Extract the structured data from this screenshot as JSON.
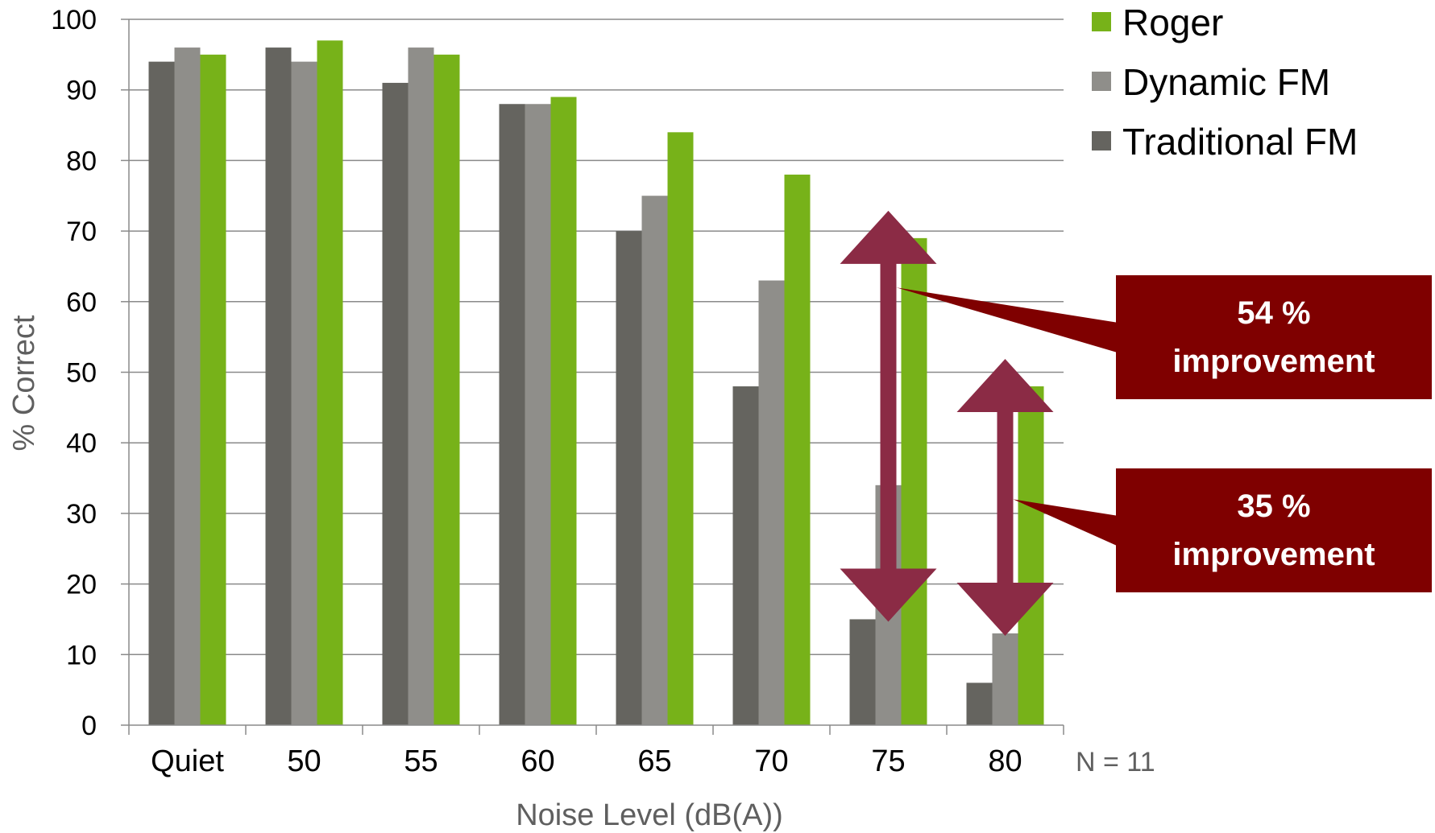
{
  "chart_data": {
    "type": "bar",
    "categories": [
      "Quiet",
      "50",
      "55",
      "60",
      "65",
      "70",
      "75",
      "80"
    ],
    "series": [
      {
        "name": "Traditional FM",
        "color": "#65645f",
        "values": [
          94,
          96,
          91,
          88,
          70,
          48,
          15,
          6
        ]
      },
      {
        "name": "Dynamic FM",
        "color": "#8f8e8a",
        "values": [
          96,
          94,
          96,
          88,
          75,
          63,
          34,
          13
        ]
      },
      {
        "name": "Roger",
        "color": "#77b219",
        "values": [
          95,
          97,
          95,
          89,
          84,
          78,
          69,
          48
        ]
      }
    ],
    "legend_order": [
      "Roger",
      "Dynamic FM",
      "Traditional FM"
    ],
    "legend_position": "top-right",
    "xlabel": "Noise Level (dB(A))",
    "ylabel": "% Correct",
    "ylim": [
      0,
      100
    ],
    "yticks": [
      0,
      10,
      20,
      30,
      40,
      50,
      60,
      70,
      80,
      90,
      100
    ],
    "grid": true,
    "grid_color": "#8a8a8a",
    "axis_label_color": "#5f5f5f",
    "sample_note": "N = 11",
    "arrow_color": "#8b2b45",
    "annotations": [
      {
        "category": "75",
        "from": 15,
        "to": 69,
        "line1": "54 %",
        "line2": "improvement",
        "box_color": "#7f0000"
      },
      {
        "category": "80",
        "from": 13,
        "to": 48,
        "line1": "35 %",
        "line2": "improvement",
        "box_color": "#7f0000"
      }
    ]
  }
}
